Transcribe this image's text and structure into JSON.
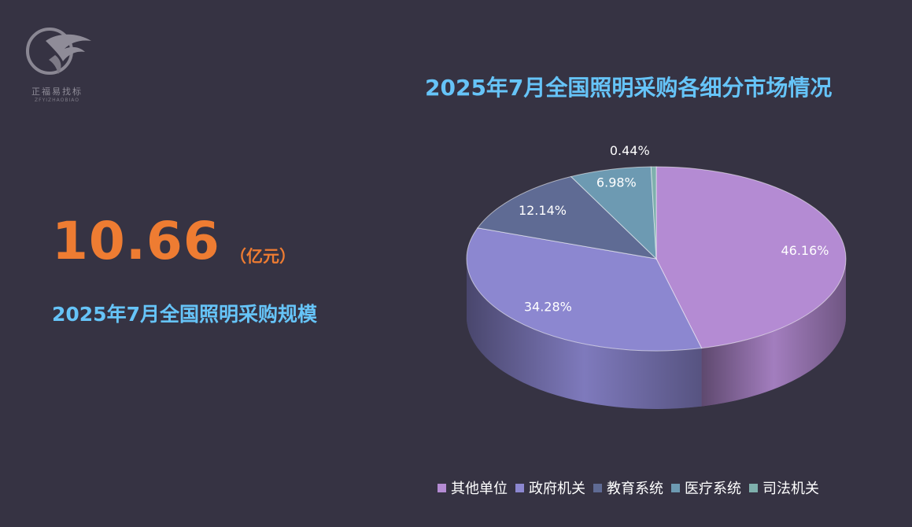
{
  "logo": {
    "cn": "正福易找标",
    "en": "ZFYIZHAOBIAO"
  },
  "headline": {
    "value": "10.66",
    "unit": "（亿元）",
    "label": "2025年7月全国照明采购规模"
  },
  "chart_data": {
    "type": "pie",
    "title": "2025年7月全国照明采购各细分市场情况",
    "legend_position": "bottom",
    "slices": [
      {
        "name": "其他单位",
        "value": 46.16,
        "label": "46.16%",
        "color": "#b48bd3"
      },
      {
        "name": "政府机关",
        "value": 34.28,
        "label": "34.28%",
        "color": "#8c87d0"
      },
      {
        "name": "教育系统",
        "value": 12.14,
        "label": "12.14%",
        "color": "#5f6b94"
      },
      {
        "name": "医疗系统",
        "value": 6.98,
        "label": "6.98%",
        "color": "#6d9ab2"
      },
      {
        "name": "司法机关",
        "value": 0.44,
        "label": "0.44%",
        "color": "#7fb0ad"
      }
    ]
  }
}
